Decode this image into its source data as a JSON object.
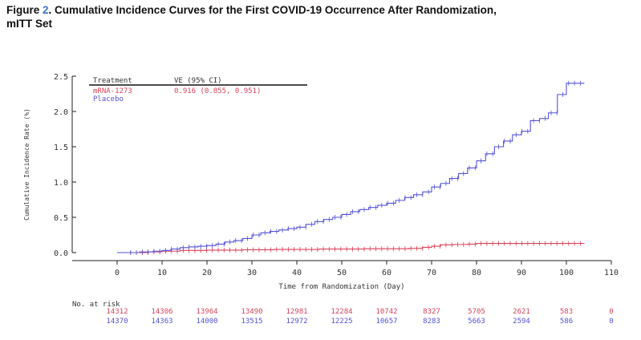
{
  "figure": {
    "label_prefix": "Figure ",
    "number": "2",
    "title_line1": ". Cumulative Incidence Curves for the First COVID-19 Occurrence After Randomization,",
    "title_line2": "mITT Set"
  },
  "colors": {
    "mrna": "#d9435b",
    "placebo": "#5552d8",
    "axis": "#222222",
    "text": "#333333"
  },
  "chart_data": {
    "type": "line",
    "xlabel": "Time from Randomization (Day)",
    "ylabel": "Cumulative Incidence Rate (%)",
    "xlim": [
      -10,
      110
    ],
    "ylim": [
      0,
      2.5
    ],
    "xticks": [
      0,
      10,
      20,
      30,
      40,
      50,
      60,
      70,
      80,
      90,
      100,
      110
    ],
    "yticks": [
      0.0,
      0.5,
      1.0,
      1.5,
      2.0,
      2.5
    ],
    "ytick_labels": [
      "0.0",
      "0.5",
      "1.0",
      "1.5",
      "2.0",
      "2.5"
    ],
    "legend": {
      "header_treatment": "Treatment",
      "header_ve": "VE (95% CI)",
      "placement": "top-left",
      "entries": [
        {
          "name": "mRNA-1273",
          "ve": "0.916 (0.855, 0.951)"
        },
        {
          "name": "Placebo",
          "ve": ""
        }
      ]
    },
    "series": [
      {
        "name": "mRNA-1273",
        "x": [
          0,
          7,
          10,
          14,
          20,
          28,
          35,
          45,
          55,
          65,
          68,
          70,
          72,
          75,
          78,
          80,
          104
        ],
        "y": [
          0,
          0.01,
          0.02,
          0.03,
          0.035,
          0.04,
          0.045,
          0.05,
          0.055,
          0.06,
          0.075,
          0.09,
          0.11,
          0.115,
          0.12,
          0.13,
          0.13
        ]
      },
      {
        "name": "Placebo",
        "x": [
          0,
          5,
          8,
          10,
          12,
          14,
          16,
          18,
          20,
          22,
          24,
          26,
          28,
          30,
          32,
          34,
          36,
          38,
          40,
          42,
          44,
          46,
          48,
          50,
          52,
          54,
          56,
          58,
          60,
          62,
          64,
          66,
          68,
          70,
          72,
          74,
          76,
          78,
          80,
          82,
          84,
          86,
          88,
          90,
          92,
          94,
          96,
          98,
          100,
          104
        ],
        "y": [
          0,
          0.01,
          0.02,
          0.03,
          0.05,
          0.07,
          0.08,
          0.09,
          0.1,
          0.12,
          0.15,
          0.17,
          0.2,
          0.25,
          0.28,
          0.3,
          0.32,
          0.34,
          0.36,
          0.4,
          0.44,
          0.47,
          0.5,
          0.54,
          0.58,
          0.61,
          0.64,
          0.67,
          0.7,
          0.74,
          0.78,
          0.82,
          0.86,
          0.93,
          0.98,
          1.05,
          1.12,
          1.2,
          1.3,
          1.4,
          1.5,
          1.58,
          1.67,
          1.72,
          1.87,
          1.9,
          1.98,
          2.24,
          2.4,
          2.4
        ]
      }
    ],
    "at_risk": {
      "label": "No. at risk",
      "days": [
        0,
        10,
        20,
        30,
        40,
        50,
        60,
        70,
        80,
        90,
        100,
        110
      ],
      "mrna": [
        "14312",
        "14306",
        "13964",
        "13490",
        "12981",
        "12284",
        "10742",
        "8327",
        "5705",
        "2621",
        "583",
        "0"
      ],
      "placebo": [
        "14370",
        "14363",
        "14000",
        "13515",
        "12972",
        "12225",
        "10657",
        "8283",
        "5663",
        "2594",
        "586",
        "0"
      ]
    }
  }
}
